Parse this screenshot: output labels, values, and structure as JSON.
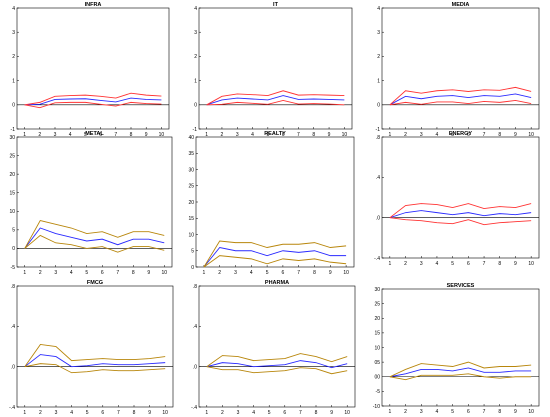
{
  "colors": {
    "mid": "#2a2aff",
    "upper": "#ff3333",
    "lower": "#ff3333",
    "alt_band": "#b8860b",
    "zero": "#000000"
  },
  "chart_data": [
    {
      "type": "line",
      "title": "INFRA",
      "x": [
        1,
        2,
        3,
        4,
        5,
        6,
        7,
        8,
        9,
        10
      ],
      "ylim": [
        -1,
        4
      ],
      "yticks": [
        -1,
        0,
        1,
        2,
        3,
        4
      ],
      "band_color": "upper",
      "series": [
        {
          "values": [
            0,
            0.02,
            0.22,
            0.24,
            0.25,
            0.18,
            0.12,
            0.28,
            0.22,
            0.2
          ],
          "color": "mid"
        },
        {
          "values": [
            0,
            0.1,
            0.35,
            0.38,
            0.4,
            0.35,
            0.28,
            0.48,
            0.4,
            0.36
          ],
          "color": "upper"
        },
        {
          "values": [
            0,
            -0.12,
            0.08,
            0.1,
            0.1,
            0.02,
            -0.05,
            0.1,
            0.05,
            0.03
          ],
          "color": "lower"
        }
      ]
    },
    {
      "type": "line",
      "title": "IT",
      "x": [
        1,
        2,
        3,
        4,
        5,
        6,
        7,
        8,
        9,
        10
      ],
      "ylim": [
        -1,
        4
      ],
      "yticks": [
        -1,
        0,
        1,
        2,
        3,
        4
      ],
      "band_color": "upper",
      "series": [
        {
          "values": [
            0,
            0.2,
            0.28,
            0.24,
            0.2,
            0.38,
            0.22,
            0.24,
            0.22,
            0.2
          ],
          "color": "mid"
        },
        {
          "values": [
            0,
            0.35,
            0.45,
            0.42,
            0.38,
            0.58,
            0.4,
            0.42,
            0.4,
            0.38
          ],
          "color": "upper"
        },
        {
          "values": [
            0,
            0.02,
            0.1,
            0.06,
            0.02,
            0.18,
            0.03,
            0.05,
            0.03,
            0.0
          ],
          "color": "lower"
        }
      ]
    },
    {
      "type": "line",
      "title": "MEDIA",
      "x": [
        1,
        2,
        3,
        4,
        5,
        6,
        7,
        8,
        9,
        10
      ],
      "ylim": [
        -1,
        4
      ],
      "yticks": [
        -1,
        0,
        1,
        2,
        3,
        4
      ],
      "band_color": "upper",
      "series": [
        {
          "values": [
            0,
            0.35,
            0.25,
            0.35,
            0.38,
            0.3,
            0.38,
            0.35,
            0.45,
            0.3
          ],
          "color": "mid"
        },
        {
          "values": [
            0,
            0.58,
            0.48,
            0.58,
            0.62,
            0.55,
            0.62,
            0.6,
            0.72,
            0.55
          ],
          "color": "upper"
        },
        {
          "values": [
            0,
            0.1,
            0.02,
            0.12,
            0.12,
            0.05,
            0.14,
            0.1,
            0.18,
            0.05
          ],
          "color": "lower"
        }
      ]
    },
    {
      "type": "line",
      "title": "METAL",
      "x": [
        1,
        2,
        3,
        4,
        5,
        6,
        7,
        8,
        9,
        10
      ],
      "ylim": [
        -5,
        30
      ],
      "yticks": [
        -5,
        0,
        5,
        10,
        15,
        20,
        25,
        30
      ],
      "band_color": "alt_band",
      "series": [
        {
          "values": [
            0,
            5.5,
            4,
            3,
            2,
            2.5,
            1,
            2.5,
            2.5,
            1.5
          ],
          "color": "mid"
        },
        {
          "values": [
            0,
            7.5,
            6.5,
            5.5,
            4,
            4.5,
            3,
            4.5,
            4.5,
            3.5
          ],
          "color": "upper"
        },
        {
          "values": [
            0,
            3.5,
            1.5,
            1,
            0,
            0.5,
            -1,
            0.5,
            0.5,
            -0.5
          ],
          "color": "lower"
        }
      ]
    },
    {
      "type": "line",
      "title": "REALTY",
      "x": [
        1,
        2,
        3,
        4,
        5,
        6,
        7,
        8,
        9,
        10
      ],
      "ylim": [
        0,
        40
      ],
      "yticks": [
        0,
        5,
        10,
        15,
        20,
        25,
        30,
        35,
        40
      ],
      "band_color": "alt_band",
      "series": [
        {
          "values": [
            0,
            6,
            5,
            5,
            3.5,
            5,
            4.5,
            5,
            3.5,
            3.5
          ],
          "color": "mid"
        },
        {
          "values": [
            0,
            8,
            7.5,
            7.5,
            6,
            7,
            7,
            7.5,
            6,
            6.5
          ],
          "color": "upper"
        },
        {
          "values": [
            0,
            3.5,
            3,
            2.5,
            1,
            2.5,
            2,
            2.5,
            1.5,
            1
          ],
          "color": "lower"
        }
      ]
    },
    {
      "type": "line",
      "title": "ENERGY",
      "x": [
        1,
        2,
        3,
        4,
        5,
        6,
        7,
        8,
        9,
        10
      ],
      "ylim": [
        -0.4,
        0.8
      ],
      "yticks": [
        -0.4,
        0,
        0.4,
        0.8
      ],
      "ytick_labels": [
        "-.4",
        ".0",
        ".4",
        ".8"
      ],
      "band_color": "upper",
      "series": [
        {
          "values": [
            0,
            0.05,
            0.07,
            0.05,
            0.03,
            0.05,
            0.02,
            0.04,
            0.03,
            0.05
          ],
          "color": "mid"
        },
        {
          "values": [
            0,
            0.12,
            0.14,
            0.13,
            0.1,
            0.14,
            0.09,
            0.11,
            0.1,
            0.14
          ],
          "color": "upper"
        },
        {
          "values": [
            0,
            -0.02,
            -0.03,
            -0.05,
            -0.06,
            -0.02,
            -0.07,
            -0.05,
            -0.04,
            -0.03
          ],
          "color": "lower"
        }
      ]
    },
    {
      "type": "line",
      "title": "FMCG",
      "x": [
        1,
        2,
        3,
        4,
        5,
        6,
        7,
        8,
        9,
        10
      ],
      "ylim": [
        -0.4,
        0.8
      ],
      "yticks": [
        -0.4,
        0,
        0.4,
        0.8
      ],
      "ytick_labels": [
        "-.4",
        ".0",
        ".4",
        ".8"
      ],
      "band_color": "alt_band",
      "series": [
        {
          "values": [
            0,
            0.12,
            0.1,
            0.0,
            0.01,
            0.03,
            0.02,
            0.02,
            0.03,
            0.04
          ],
          "color": "mid"
        },
        {
          "values": [
            0,
            0.22,
            0.2,
            0.06,
            0.07,
            0.08,
            0.07,
            0.07,
            0.08,
            0.1
          ],
          "color": "upper"
        },
        {
          "values": [
            0,
            0.03,
            0.02,
            -0.06,
            -0.05,
            -0.03,
            -0.04,
            -0.04,
            -0.03,
            -0.02
          ],
          "color": "lower"
        }
      ]
    },
    {
      "type": "line",
      "title": "PHARMA",
      "x": [
        1,
        2,
        3,
        4,
        5,
        6,
        7,
        8,
        9,
        10
      ],
      "ylim": [
        -0.4,
        0.8
      ],
      "yticks": [
        -0.4,
        0,
        0.4,
        0.8
      ],
      "ytick_labels": [
        "-.4",
        ".0",
        ".4",
        ".8"
      ],
      "band_color": "alt_band",
      "series": [
        {
          "values": [
            0,
            0.04,
            0.03,
            0.0,
            0.01,
            0.02,
            0.06,
            0.04,
            -0.01,
            0.03
          ],
          "color": "mid"
        },
        {
          "values": [
            0,
            0.11,
            0.1,
            0.06,
            0.07,
            0.08,
            0.13,
            0.1,
            0.05,
            0.1
          ],
          "color": "upper"
        },
        {
          "values": [
            0,
            -0.03,
            -0.03,
            -0.06,
            -0.05,
            -0.04,
            -0.01,
            -0.02,
            -0.07,
            -0.04
          ],
          "color": "lower"
        }
      ]
    },
    {
      "type": "line",
      "title": "SERVICES",
      "x": [
        1,
        2,
        3,
        4,
        5,
        6,
        7,
        8,
        9,
        10
      ],
      "ylim": [
        -10,
        30
      ],
      "yticks": [
        -10,
        -5,
        0,
        5,
        10,
        15,
        20,
        25,
        30
      ],
      "ytick_labels": [
        "-10",
        "-5",
        "00",
        "05",
        "10",
        "15",
        "20",
        "25",
        "30"
      ],
      "band_color": "alt_band",
      "series": [
        {
          "values": [
            0,
            1,
            2.5,
            2.5,
            2,
            3,
            1.5,
            1.5,
            2,
            2
          ],
          "color": "mid"
        },
        {
          "values": [
            0,
            2.5,
            4.5,
            4,
            3.5,
            5,
            3,
            3.5,
            3.5,
            4
          ],
          "color": "upper"
        },
        {
          "values": [
            0,
            -1,
            0.5,
            0.5,
            0.5,
            1,
            0,
            -0.5,
            0,
            0
          ],
          "color": "lower"
        }
      ]
    }
  ]
}
